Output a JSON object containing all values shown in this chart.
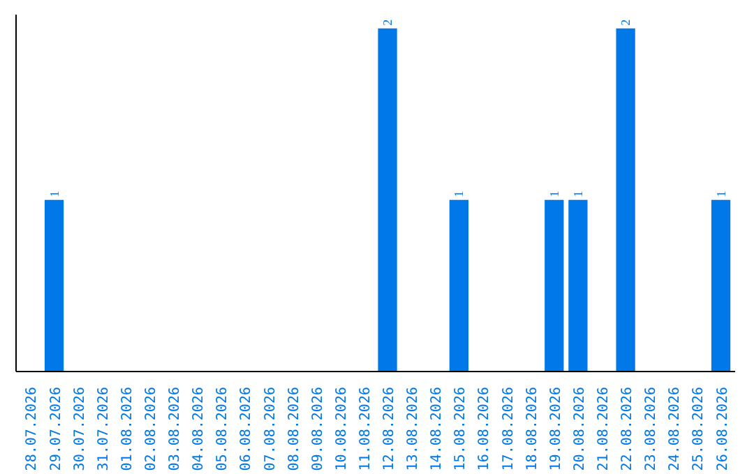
{
  "chart_data": {
    "type": "bar",
    "categories": [
      "28.07.2026",
      "29.07.2026",
      "30.07.2026",
      "31.07.2026",
      "01.08.2026",
      "02.08.2026",
      "03.08.2026",
      "04.08.2026",
      "05.08.2026",
      "06.08.2026",
      "07.08.2026",
      "08.08.2026",
      "09.08.2026",
      "10.08.2026",
      "11.08.2026",
      "12.08.2026",
      "13.08.2026",
      "14.08.2026",
      "15.08.2026",
      "16.08.2026",
      "17.08.2026",
      "18.08.2026",
      "19.08.2026",
      "20.08.2026",
      "21.08.2026",
      "22.08.2026",
      "23.08.2026",
      "24.08.2026",
      "25.08.2026",
      "26.08.2026"
    ],
    "values": [
      0,
      1,
      0,
      0,
      0,
      0,
      0,
      0,
      0,
      0,
      0,
      0,
      0,
      0,
      0,
      2,
      0,
      0,
      1,
      0,
      0,
      0,
      1,
      1,
      0,
      2,
      0,
      0,
      0,
      1
    ],
    "value_labels": [
      null,
      "1",
      null,
      null,
      null,
      null,
      null,
      null,
      null,
      null,
      null,
      null,
      null,
      null,
      null,
      "2",
      null,
      null,
      "1",
      null,
      null,
      null,
      "1",
      "1",
      null,
      "2",
      null,
      null,
      null,
      "1"
    ],
    "color": "#0078e7",
    "grid": false
  }
}
